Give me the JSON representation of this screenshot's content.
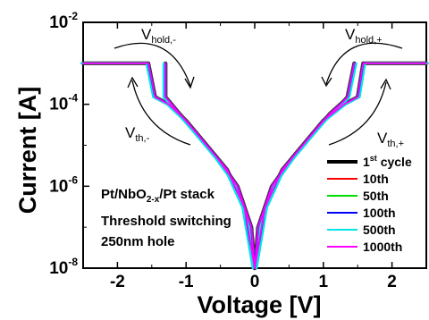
{
  "chart_data": {
    "type": "line",
    "x_label": "Voltage [V]",
    "y_label": "Current [A]",
    "y_scale": "log",
    "xlim": [
      -2.5,
      2.5
    ],
    "ylim": [
      1e-08,
      0.01
    ],
    "x_ticks": [
      "-2",
      "-1",
      "0",
      "1",
      "2"
    ],
    "y_ticks": [
      {
        "base": "10",
        "exp": "-2"
      },
      {
        "base": "10",
        "exp": "-4"
      },
      {
        "base": "10",
        "exp": "-6"
      },
      {
        "base": "10",
        "exp": "-8"
      }
    ],
    "annotations": {
      "hold_neg": {
        "main": "V",
        "sub": "hold,-"
      },
      "hold_pos": {
        "main": "V",
        "sub": "hold,+"
      },
      "th_neg": {
        "main": "V",
        "sub": "th,-"
      },
      "th_pos": {
        "main": "V",
        "sub": "th,+"
      }
    },
    "notes": {
      "line1_a": "Pt/NbO",
      "line1_sub": "2-x",
      "line1_b": "/Pt stack",
      "line2": "Threshold switching",
      "line3": "250nm hole"
    },
    "legend_placement": "lower-right",
    "series": [
      {
        "name": "1",
        "name_sup": "st",
        "name_rest": " cycle",
        "color": "#000000"
      },
      {
        "name": "10th",
        "color": "#ff0000"
      },
      {
        "name": "50th",
        "color": "#00dd00"
      },
      {
        "name": "100th",
        "color": "#0000ff"
      },
      {
        "name": "500th",
        "color": "#00e5e5"
      },
      {
        "name": "1000th",
        "color": "#ff00ff"
      }
    ],
    "curve": {
      "compliance": 0.001,
      "neg_branch": {
        "up": [
          [
            0,
            1e-08
          ],
          [
            -0.05,
            1e-07
          ],
          [
            -0.25,
            1e-06
          ],
          [
            -0.55,
            5e-06
          ],
          [
            -0.85,
            2e-05
          ],
          [
            -1.1,
            6e-05
          ],
          [
            -1.25,
            0.00012
          ],
          [
            -1.3,
            0.00015
          ],
          [
            -1.3,
            0.001
          ]
        ],
        "hold": [
          [
            -2.5,
            0.001
          ],
          [
            -1.55,
            0.001
          ],
          [
            -1.45,
            0.00015
          ],
          [
            -1.25,
            0.0001
          ],
          [
            -1.0,
            4e-05
          ],
          [
            -0.7,
            1e-05
          ],
          [
            -0.4,
            2.5e-06
          ],
          [
            -0.15,
            3e-07
          ],
          [
            0,
            1e-08
          ]
        ]
      },
      "pos_branch": {
        "up": [
          [
            0,
            1e-08
          ],
          [
            0.05,
            1e-07
          ],
          [
            0.25,
            1e-06
          ],
          [
            0.55,
            5e-06
          ],
          [
            0.85,
            2e-05
          ],
          [
            1.1,
            6e-05
          ],
          [
            1.3,
            0.00012
          ],
          [
            1.35,
            0.00015
          ],
          [
            1.45,
            0.001
          ]
        ],
        "hold": [
          [
            2.5,
            0.001
          ],
          [
            1.58,
            0.001
          ],
          [
            1.5,
            0.00015
          ],
          [
            1.3,
            0.0001
          ],
          [
            1.0,
            4e-05
          ],
          [
            0.7,
            1e-05
          ],
          [
            0.4,
            2.5e-06
          ],
          [
            0.15,
            3e-07
          ],
          [
            0,
            1e-08
          ]
        ]
      }
    }
  }
}
